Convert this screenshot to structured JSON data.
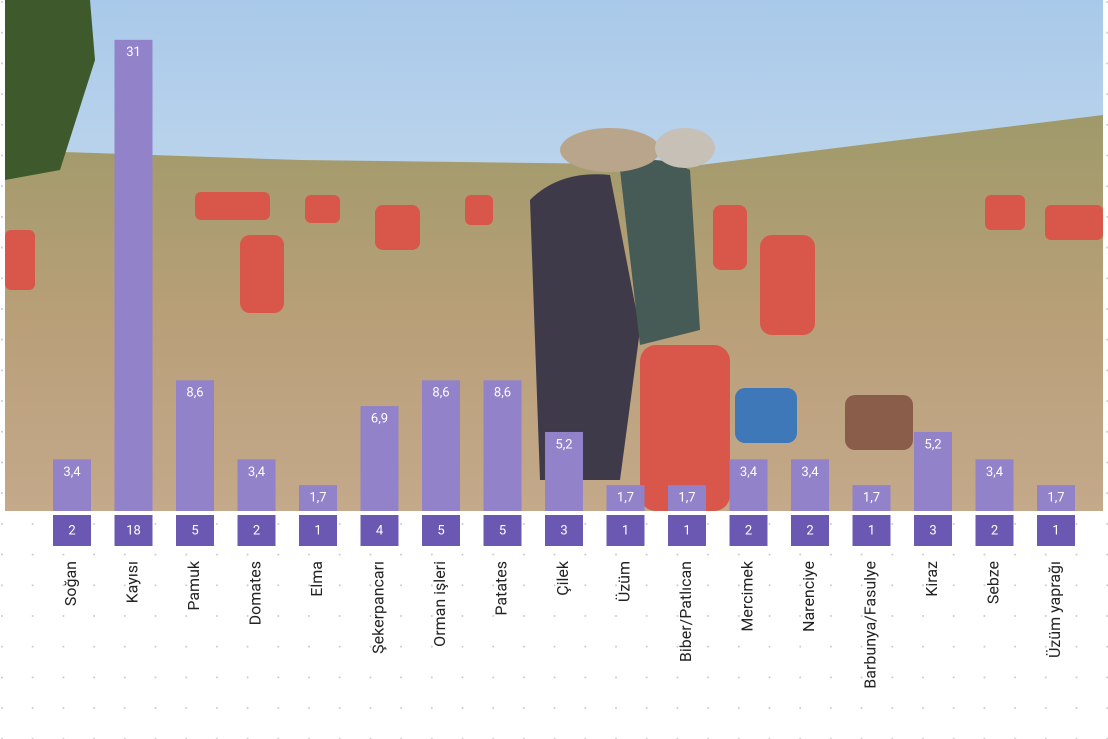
{
  "chart_data": {
    "type": "bar",
    "categories": [
      "Soğan",
      "Kayısı",
      "Pamuk",
      "Domates",
      "Elma",
      "Şekerpancarı",
      "Orman işleri",
      "Patates",
      "Çilek",
      "Üzüm",
      "Biber/Patlıcan",
      "Mercimek",
      "Narenciye",
      "Barbunya/Fasulye",
      "Kiraz",
      "Sebze",
      "Üzüm yaprağı"
    ],
    "values": [
      3.4,
      31,
      8.6,
      3.4,
      1.7,
      6.9,
      8.6,
      8.6,
      5.2,
      1.7,
      1.7,
      3.4,
      3.4,
      1.7,
      5.2,
      3.4,
      1.7
    ],
    "value_labels": [
      "3,4",
      "31",
      "8,6",
      "3,4",
      "1,7",
      "6,9",
      "8,6",
      "8,6",
      "5,2",
      "1,7",
      "1,7",
      "3,4",
      "3,4",
      "1,7",
      "5,2",
      "3,4",
      "1,7"
    ],
    "counts": [
      2,
      18,
      5,
      2,
      1,
      4,
      5,
      5,
      3,
      1,
      1,
      2,
      2,
      1,
      3,
      2,
      1
    ],
    "color": "#9182c9",
    "count_color": "#6b58b2"
  }
}
